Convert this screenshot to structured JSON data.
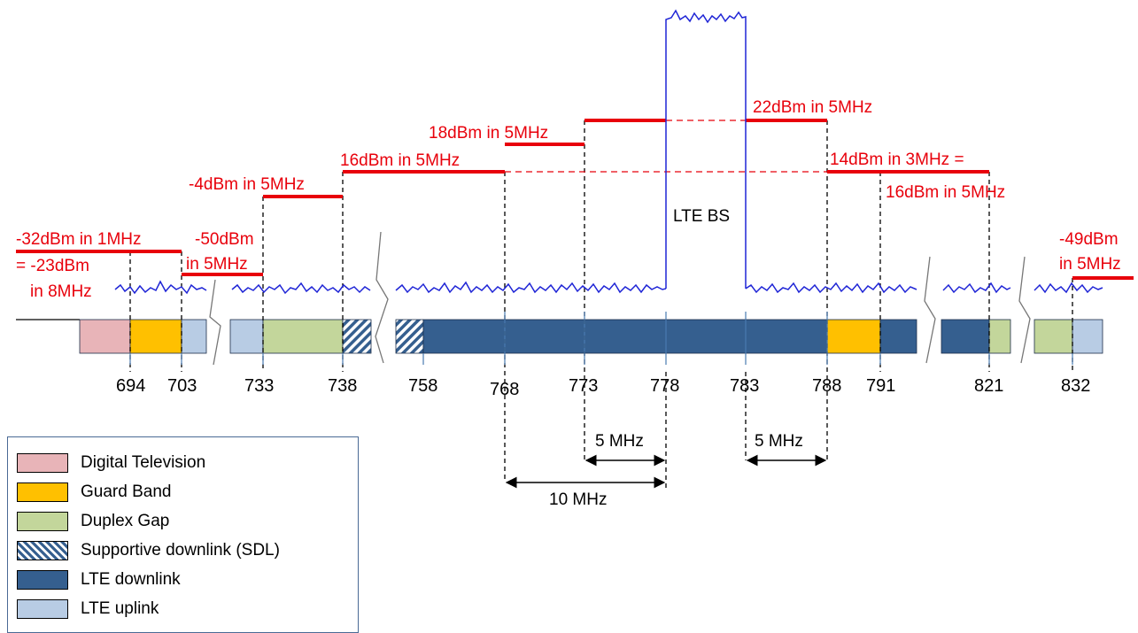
{
  "colors": {
    "digital_tv": "#e8b4b8",
    "guard_band": "#ffc000",
    "duplex_gap": "#c3d69b",
    "lte_downlink": "#355f8f",
    "lte_uplink": "#b8cce4",
    "limit_line": "#e8000b",
    "emission": "#1f25d6"
  },
  "frequency_ticks": [
    "694",
    "703",
    "733",
    "738",
    "758",
    "768",
    "773",
    "778",
    "783",
    "788",
    "791",
    "821",
    "832"
  ],
  "limits": {
    "l1a": "-32dBm in 1MHz",
    "l1b": "= -23dBm",
    "l1c": "in 8MHz",
    "l2a": "-50dBm",
    "l2b": "in 5MHz",
    "l3": "-4dBm in 5MHz",
    "l4": "16dBm in 5MHz",
    "l5": "18dBm in 5MHz",
    "l6": "22dBm in 5MHz",
    "l7a": "14dBm in 3MHz =",
    "l7b": "16dBm in 5MHz",
    "l8a": "-49dBm",
    "l8b": "in 5MHz"
  },
  "carrier_label": "LTE BS",
  "spacing": {
    "a": "5 MHz",
    "b": "5 MHz",
    "c": "10 MHz"
  },
  "legend": [
    {
      "label": "Digital Television",
      "pattern": "solid",
      "color": "#e8b4b8"
    },
    {
      "label": "Guard Band",
      "pattern": "solid",
      "color": "#ffc000"
    },
    {
      "label": "Duplex Gap",
      "pattern": "solid",
      "color": "#c3d69b"
    },
    {
      "label": "Supportive downlink (SDL)",
      "pattern": "hatched",
      "color": "#355f8f"
    },
    {
      "label": "LTE downlink",
      "pattern": "solid",
      "color": "#355f8f"
    },
    {
      "label": "LTE uplink",
      "pattern": "solid",
      "color": "#b8cce4"
    }
  ]
}
